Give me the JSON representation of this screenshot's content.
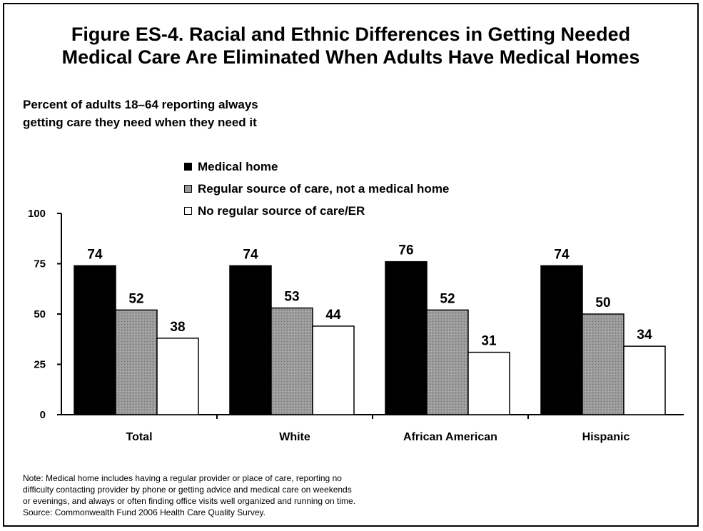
{
  "title_lines": [
    "Figure ES-4. Racial and Ethnic Differences in Getting Needed",
    "Medical Care Are Eliminated When Adults Have Medical Homes"
  ],
  "subtitle_lines": [
    "Percent of adults 18–64 reporting always",
    "getting care they need when they need it"
  ],
  "note_lines": [
    "Note: Medical home includes having a regular provider or place of care, reporting no",
    "difficulty contacting provider by phone or getting advice and medical care on weekends",
    "or evenings, and always or often finding office visits well organized and running on time.",
    "Source: Commonwealth Fund 2006 Health Care Quality Survey."
  ],
  "colors": {
    "medical_home": "#000000",
    "regular_source": "#9a9a9a",
    "no_regular_source": "#ffffff"
  },
  "chart_data": {
    "type": "bar",
    "categories": [
      "Total",
      "White",
      "African American",
      "Hispanic"
    ],
    "series": [
      {
        "name": "Medical home",
        "values": [
          74,
          74,
          76,
          74
        ]
      },
      {
        "name": "Regular source of care, not a medical home",
        "values": [
          52,
          53,
          52,
          50
        ]
      },
      {
        "name": "No regular source of care/ER",
        "values": [
          38,
          44,
          31,
          34
        ]
      }
    ],
    "yticks": [
      "0",
      "25",
      "50",
      "75",
      "100"
    ],
    "ylim": [
      0,
      100
    ],
    "legend_position": "top-center",
    "grid": false
  }
}
